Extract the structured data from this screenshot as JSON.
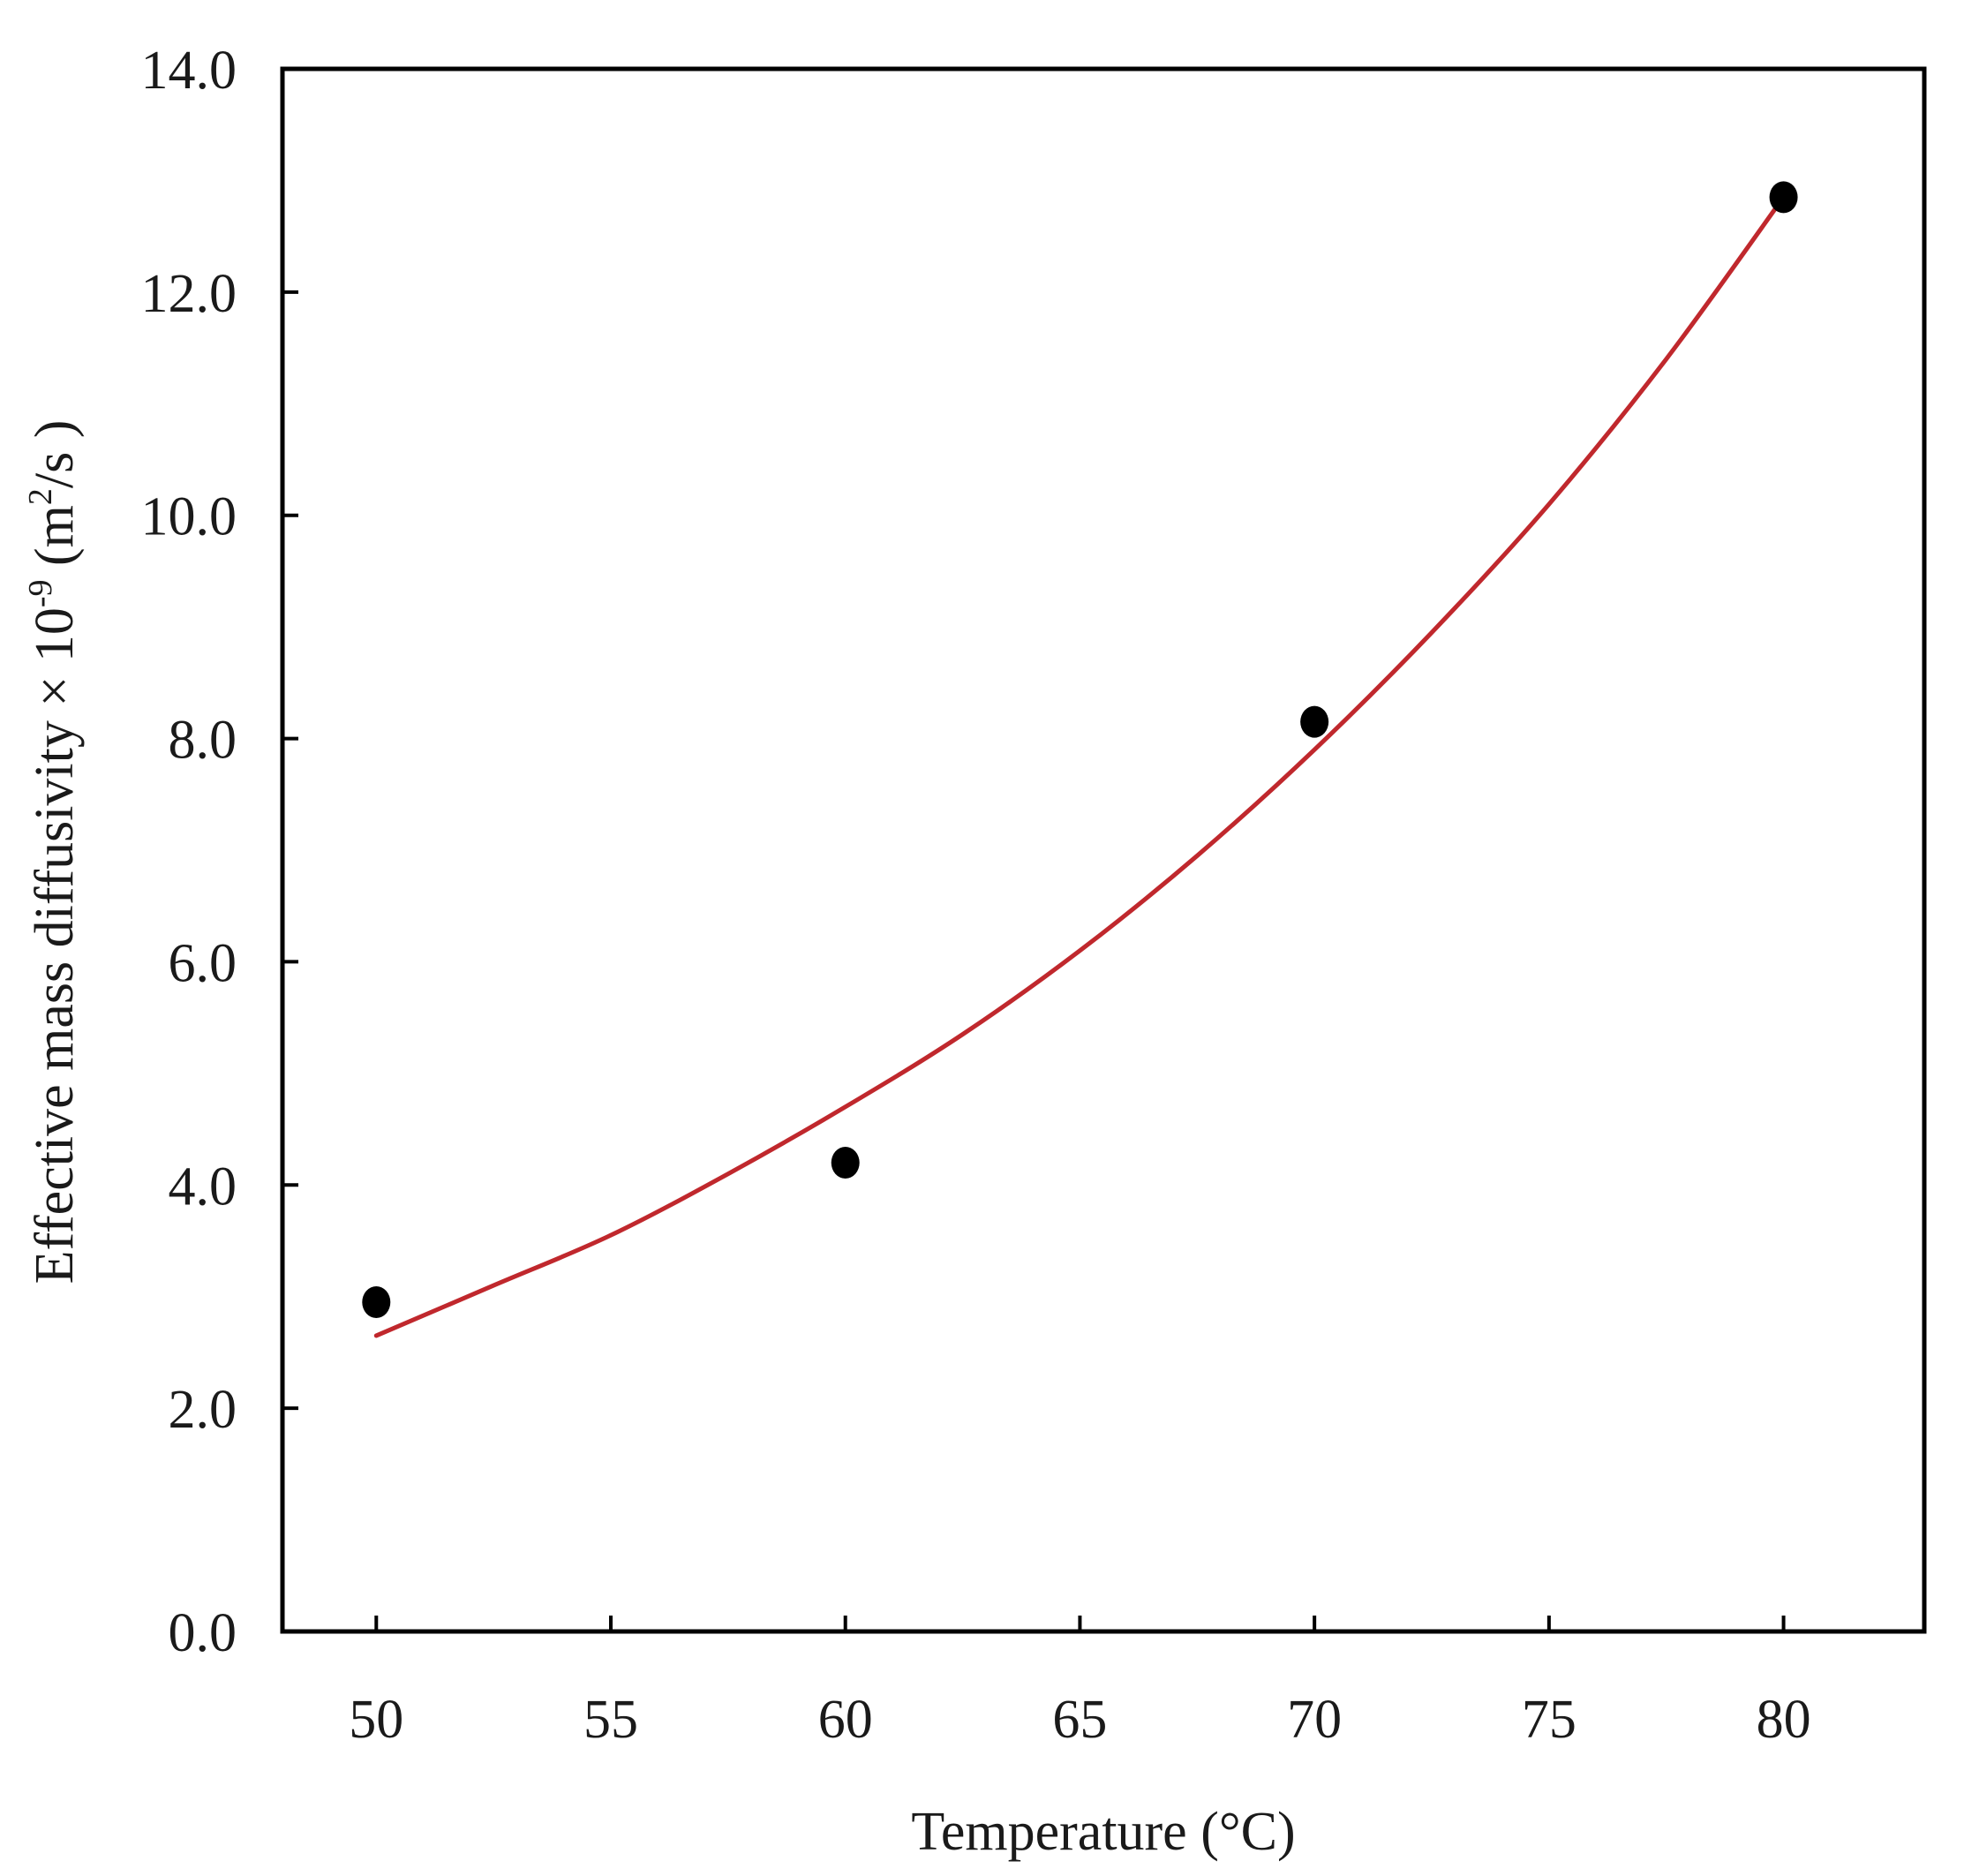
{
  "chart_data": {
    "type": "scatter",
    "title": "",
    "xlabel": "Temperature (°C)",
    "ylabel_parts": {
      "main": "Effective mass diffusivity × 10",
      "exp": "-9",
      "unit_open": " (m",
      "unit_exp": "2",
      "unit_close": "/s )"
    },
    "xlim": [
      48,
      83
    ],
    "ylim": [
      0,
      14
    ],
    "x_ticks": [
      50,
      55,
      60,
      65,
      70,
      75,
      80
    ],
    "x_tick_labels": [
      "50",
      "55",
      "60",
      "65",
      "70",
      "75",
      "80"
    ],
    "y_ticks": [
      0,
      2,
      4,
      6,
      8,
      10,
      12,
      14
    ],
    "y_tick_labels": [
      "0.0",
      "2.0",
      "4.0",
      "6.0",
      "8.0",
      "10.0",
      "12.0",
      "14.0"
    ],
    "grid": false,
    "series": [
      {
        "kind": "points",
        "x": [
          50,
          60,
          70,
          80
        ],
        "y": [
          2.95,
          4.2,
          8.15,
          12.85
        ],
        "color": "#000000"
      },
      {
        "kind": "fit-curve",
        "x": [
          50,
          52.5,
          55,
          57.5,
          60,
          62.5,
          65,
          67.5,
          70,
          72.5,
          75,
          77.5,
          80
        ],
        "y": [
          2.65,
          3.1,
          3.55,
          4.1,
          4.7,
          5.35,
          6.1,
          6.95,
          7.9,
          8.95,
          10.1,
          11.4,
          12.85
        ],
        "color": "#c0282d"
      }
    ]
  }
}
